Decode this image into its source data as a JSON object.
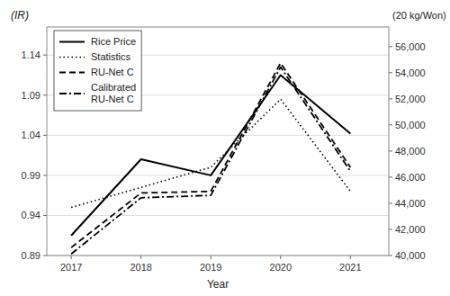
{
  "chart_data": {
    "type": "line",
    "x_label": "Year",
    "y_label": "(IR)",
    "y2_label": "(20 kg/Won)",
    "x": [
      2017,
      2018,
      2019,
      2020,
      2021
    ],
    "series": [
      {
        "name": "Rice Price",
        "color": "#000000",
        "line_style": "solid",
        "values": [
          0.915,
          1.01,
          0.99,
          1.115,
          1.042
        ]
      },
      {
        "name": "Statistics",
        "color": "#000000",
        "line_style": "dotted",
        "values": [
          0.95,
          0.975,
          1.0,
          1.085,
          0.97
        ]
      },
      {
        "name": "RU-Net C",
        "color": "#000000",
        "line_style": "dashed",
        "values": [
          0.9,
          0.968,
          0.97,
          1.13,
          1.0
        ]
      },
      {
        "name": "Calibrated\nRU-Net C",
        "color": "#000000",
        "line_style": "dashdot",
        "values": [
          0.892,
          0.962,
          0.965,
          1.125,
          0.995
        ]
      }
    ],
    "xlim": [
      2016.65,
      2021.55
    ],
    "xticks": [
      2017,
      2018,
      2019,
      2020,
      2021
    ],
    "ylim": [
      0.89,
      1.175
    ],
    "yticks": [
      0.89,
      0.94,
      0.99,
      1.04,
      1.09,
      1.14
    ],
    "y2lim": [
      40000,
      57500
    ],
    "y2ticks": [
      {
        "value": 40000,
        "label": "40,000"
      },
      {
        "value": 42000,
        "label": "42,000"
      },
      {
        "value": 44000,
        "label": "44,000"
      },
      {
        "value": 46000,
        "label": "46,000"
      },
      {
        "value": 48000,
        "label": "48,000"
      },
      {
        "value": 50000,
        "label": "50,000"
      },
      {
        "value": 52000,
        "label": "52,000"
      },
      {
        "value": 54000,
        "label": "54,000"
      },
      {
        "value": 56000,
        "label": "56,000"
      }
    ],
    "grid": true,
    "legend": "upper left"
  }
}
